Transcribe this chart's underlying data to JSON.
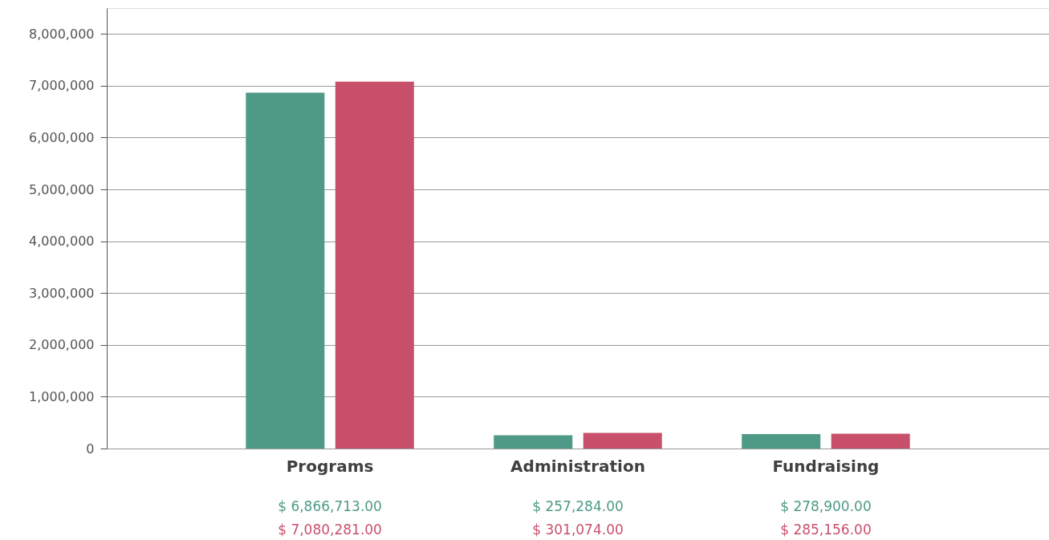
{
  "chart_data": {
    "type": "bar",
    "categories": [
      "Programs",
      "Administration",
      "Fundraising"
    ],
    "series": [
      {
        "color": "#4f9a86",
        "values": [
          6866713,
          257284,
          278900
        ],
        "value_labels": [
          "$ 6,866,713.00",
          "$ 257,284.00",
          "$ 278,900.00"
        ]
      },
      {
        "color": "#c9506a",
        "values": [
          7080281,
          301074,
          285156
        ],
        "value_labels": [
          "$ 7,080,281.00",
          "$ 301,074.00",
          "$ 285,156.00"
        ]
      }
    ],
    "ylim": [
      0,
      8500000
    ],
    "yticks": [
      {
        "value": 0,
        "label": "0"
      },
      {
        "value": 1000000,
        "label": "1,000,000"
      },
      {
        "value": 2000000,
        "label": "2,000,000"
      },
      {
        "value": 3000000,
        "label": "3,000,000"
      },
      {
        "value": 4000000,
        "label": "4,000,000"
      },
      {
        "value": 5000000,
        "label": "5,000,000"
      },
      {
        "value": 6000000,
        "label": "6,000,000"
      },
      {
        "value": 7000000,
        "label": "7,000,000"
      },
      {
        "value": 8000000,
        "label": "8,000,000"
      }
    ],
    "grid": "y"
  }
}
